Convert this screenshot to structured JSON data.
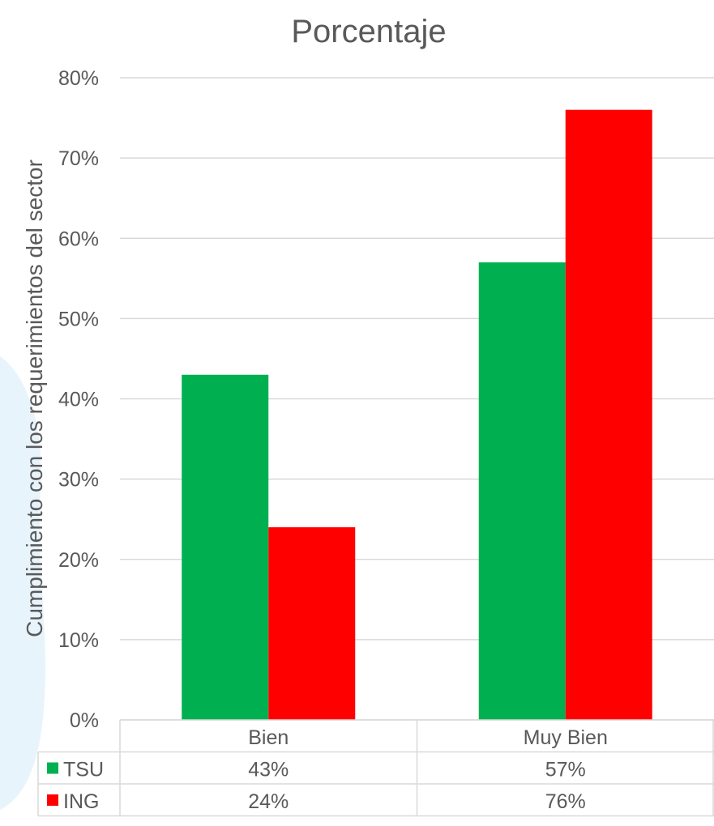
{
  "chart_data": {
    "type": "bar",
    "title": "Porcentaje",
    "xlabel": "",
    "ylabel": "Cumplimiento con los requerimientos del sector",
    "categories": [
      "Bien",
      "Muy Bien"
    ],
    "series": [
      {
        "name": "TSU",
        "values": [
          43,
          57
        ],
        "labels": [
          "43%",
          "57%"
        ],
        "color": "#00b050"
      },
      {
        "name": "ING",
        "values": [
          24,
          76
        ],
        "labels": [
          "24%",
          "76%"
        ],
        "color": "#ff0000"
      }
    ],
    "ylim": [
      0,
      80
    ],
    "yticks": [
      "0%",
      "10%",
      "20%",
      "30%",
      "40%",
      "50%",
      "60%",
      "70%",
      "80%"
    ],
    "grid": true,
    "legend": "data-table"
  }
}
